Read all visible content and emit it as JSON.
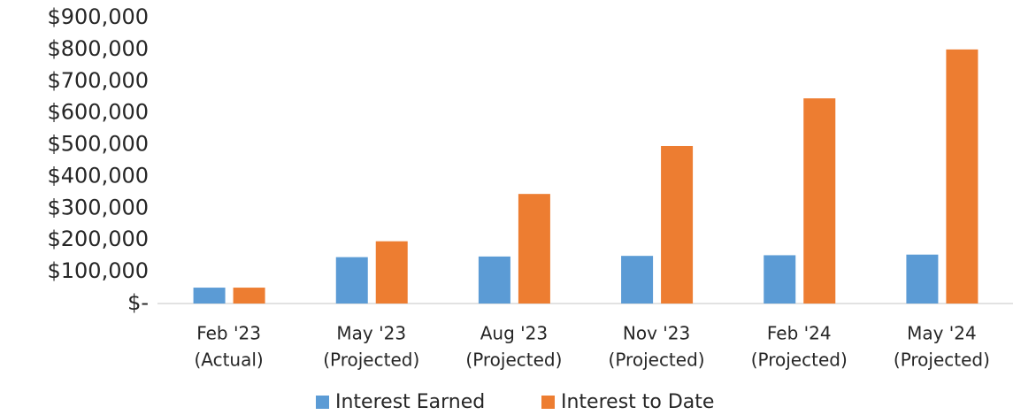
{
  "chart_data": {
    "type": "bar",
    "categories": [
      [
        "Feb '23",
        "(Actual)"
      ],
      [
        "May '23",
        "(Projected)"
      ],
      [
        "Aug '23",
        "(Projected)"
      ],
      [
        "Nov '23",
        "(Projected)"
      ],
      [
        "Feb '24",
        "(Projected)"
      ],
      [
        "May '24",
        "(Projected)"
      ]
    ],
    "series": [
      {
        "name": "Interest Earned",
        "color": "#5b9bd5",
        "values": [
          50000,
          146000,
          148000,
          150000,
          152000,
          154000
        ]
      },
      {
        "name": "Interest to Date",
        "color": "#ed7d31",
        "values": [
          50000,
          196000,
          345000,
          496000,
          646000,
          800000
        ]
      }
    ],
    "ylim": [
      0,
      900000
    ],
    "yticks": [
      {
        "value": 0,
        "label": "$-"
      },
      {
        "value": 100000,
        "label": "$100,000"
      },
      {
        "value": 200000,
        "label": "$200,000"
      },
      {
        "value": 300000,
        "label": "$300,000"
      },
      {
        "value": 400000,
        "label": "$400,000"
      },
      {
        "value": 500000,
        "label": "$500,000"
      },
      {
        "value": 600000,
        "label": "$600,000"
      },
      {
        "value": 700000,
        "label": "$700,000"
      },
      {
        "value": 800000,
        "label": "$800,000"
      },
      {
        "value": 900000,
        "label": "$900,000"
      }
    ],
    "grid": false,
    "legend": "bottom"
  }
}
